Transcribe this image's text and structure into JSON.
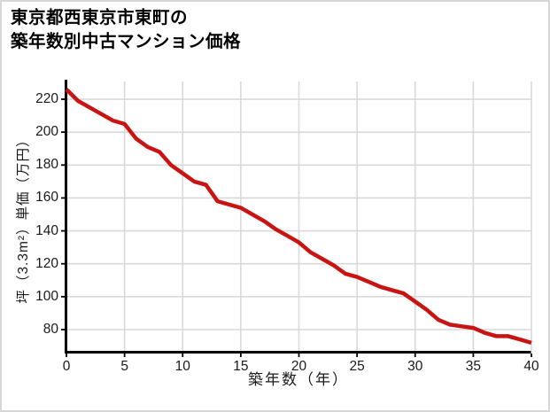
{
  "page": {
    "background": "#ffffff",
    "border_color": "#d6d6d6"
  },
  "title": {
    "line1": "東京都西東京市東町の",
    "line2": "築年数別中古マンション価格"
  },
  "chart_data": {
    "type": "line",
    "title": "東京都西東京市東町の築年数別中古マンション価格",
    "xlabel": "築年数（年）",
    "ylabel": "坪（3.3m²）単価（万円）",
    "x": [
      0,
      1,
      2,
      3,
      4,
      5,
      6,
      7,
      8,
      9,
      10,
      11,
      12,
      13,
      14,
      15,
      16,
      17,
      18,
      19,
      20,
      21,
      22,
      23,
      24,
      25,
      26,
      27,
      28,
      29,
      30,
      31,
      32,
      33,
      34,
      35,
      36,
      37,
      38,
      39,
      40
    ],
    "values": [
      226,
      219,
      215,
      211,
      207,
      205,
      196,
      191,
      188,
      180,
      175,
      170,
      168,
      158,
      156,
      154,
      150,
      146,
      141,
      137,
      133,
      127,
      123,
      119,
      114,
      112,
      109,
      106,
      104,
      102,
      97,
      92,
      86,
      83,
      82,
      81,
      78,
      76,
      76,
      74,
      72
    ],
    "xticks": [
      0,
      5,
      10,
      15,
      20,
      25,
      30,
      35,
      40
    ],
    "yticks": [
      220,
      200,
      180,
      160,
      140,
      120,
      100,
      80
    ],
    "xlim": [
      0,
      40
    ],
    "ylim": [
      66,
      231
    ],
    "grid": true,
    "legend": "none",
    "line_color": "#c91414",
    "line_width": 4.5,
    "axis_color": "#000000",
    "grid_color": "#d9d9d9",
    "tick_label_color": "#1a1a1a"
  }
}
